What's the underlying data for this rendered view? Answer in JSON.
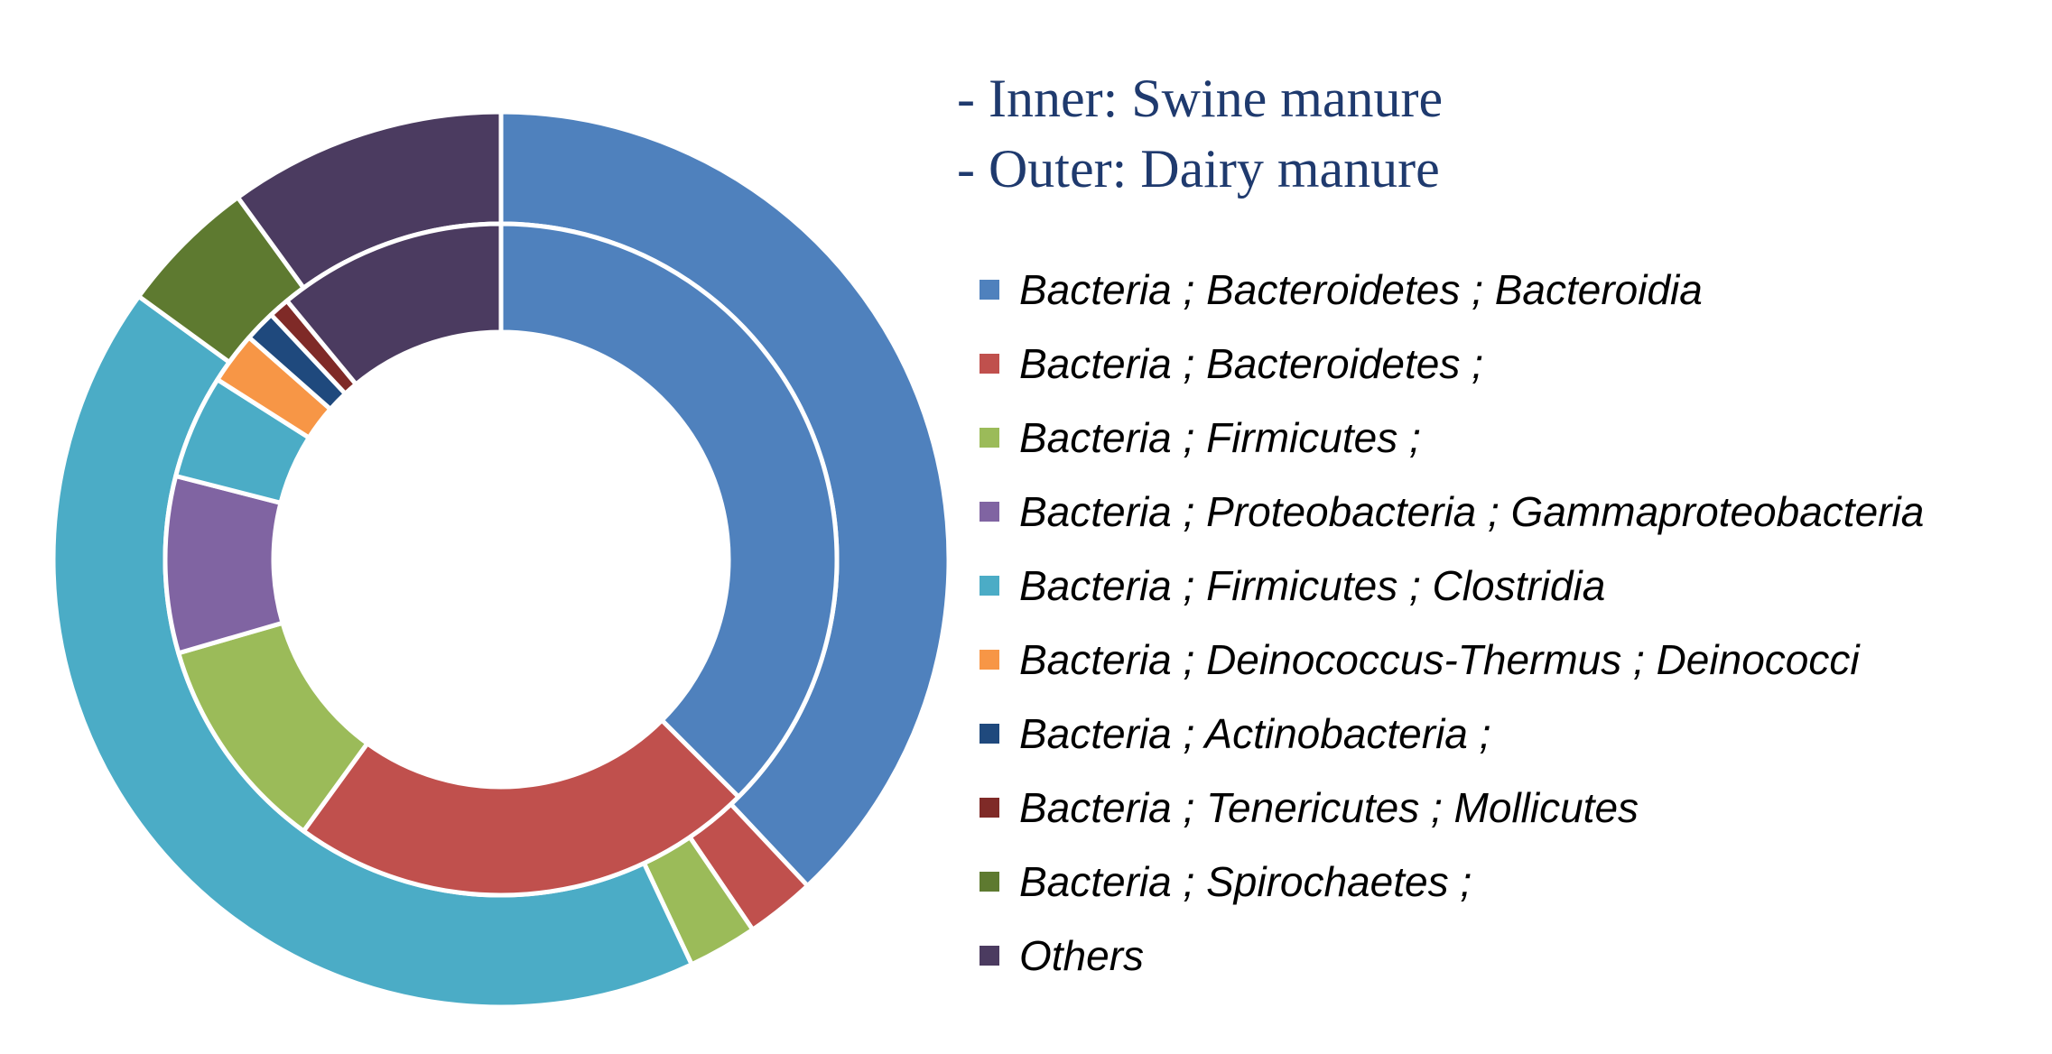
{
  "chart_data": {
    "type": "pie",
    "subtype": "nested-donut",
    "title": "",
    "ring_notes": [
      "- Inner: Swine manure",
      "- Outer: Dairy manure"
    ],
    "categories": [
      "Bacteria ; Bacteroidetes ; Bacteroidia",
      "Bacteria ; Bacteroidetes ;",
      "Bacteria ; Firmicutes ;",
      "Bacteria ; Proteobacteria ; Gammaproteobacteria",
      "Bacteria ; Firmicutes ; Clostridia",
      "Bacteria ; Deinococcus-Thermus ; Deinococci",
      "Bacteria ; Actinobacteria ;",
      "Bacteria ; Tenericutes ; Mollicutes",
      "Bacteria ; Spirochaetes ;",
      "Others"
    ],
    "colors": [
      "#4f81bd",
      "#c0504d",
      "#9bbb59",
      "#8064a2",
      "#4bacc6",
      "#f79646",
      "#1f497d",
      "#7f2a27",
      "#5e7a30",
      "#4b3b60"
    ],
    "series": [
      {
        "ring": "inner",
        "values": [
          37.5,
          22.5,
          10.5,
          8.5,
          5.0,
          2.5,
          1.5,
          1.0,
          0.0,
          11.0
        ]
      },
      {
        "ring": "outer",
        "values": [
          38.0,
          2.5,
          2.5,
          0.0,
          42.0,
          0.0,
          0.0,
          0.0,
          5.0,
          10.0
        ]
      }
    ],
    "legend_position": "right"
  }
}
